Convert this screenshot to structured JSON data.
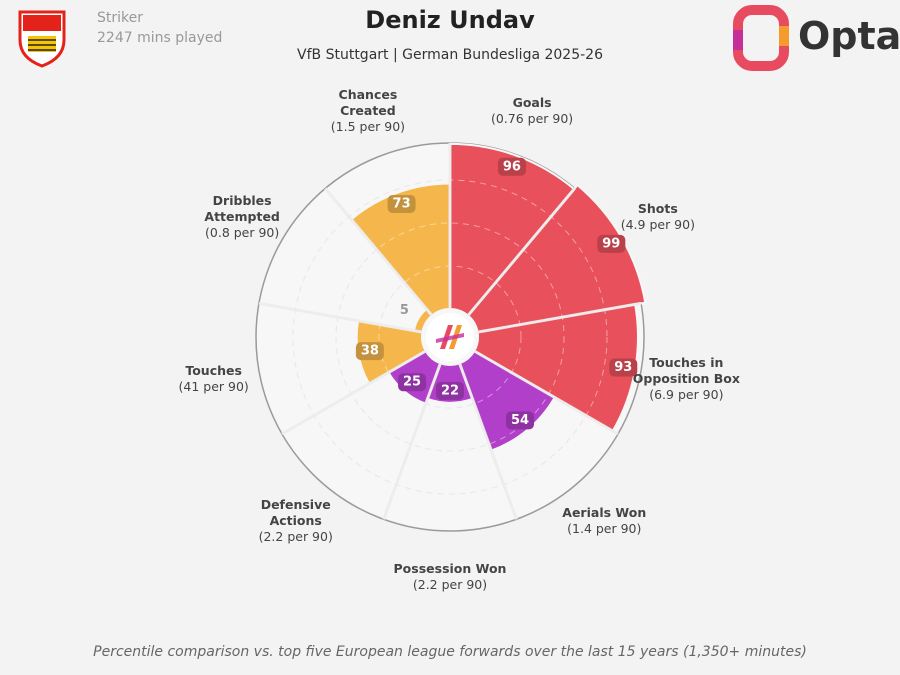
{
  "chart_data": {
    "type": "pizza",
    "title": "Deniz Undav",
    "subtitle": "VfB Stuttgart | German Bundesliga 2025-26",
    "position": "Striker",
    "minutes": "2247 mins played",
    "brand": "Opta",
    "note": "Percentile comparison vs. top five European league forwards over the last 15 years (1,350+ minutes)",
    "categories": [
      "Goals",
      "Shots",
      "Touches in Opposition Box",
      "Aerials Won",
      "Possession Won",
      "Defensive Actions",
      "Touches",
      "Dribbles Attempted",
      "Chances Created"
    ],
    "per90_labels": [
      "(0.76 per 90)",
      "(4.9 per 90)",
      "(6.9 per 90)",
      "(1.4 per 90)",
      "(2.2 per 90)",
      "(2.2 per 90)",
      "(41 per 90)",
      "(0.8 per 90)",
      "(1.5 per 90)"
    ],
    "values": [
      96,
      99,
      93,
      54,
      22,
      25,
      38,
      5,
      73
    ],
    "colors": [
      "#e8505b",
      "#e8505b",
      "#e8505b",
      "#b23fca",
      "#b23fca",
      "#b23fca",
      "#f5b64c",
      "#f5b64c",
      "#f5b64c"
    ],
    "rlim": [
      0,
      100
    ]
  }
}
